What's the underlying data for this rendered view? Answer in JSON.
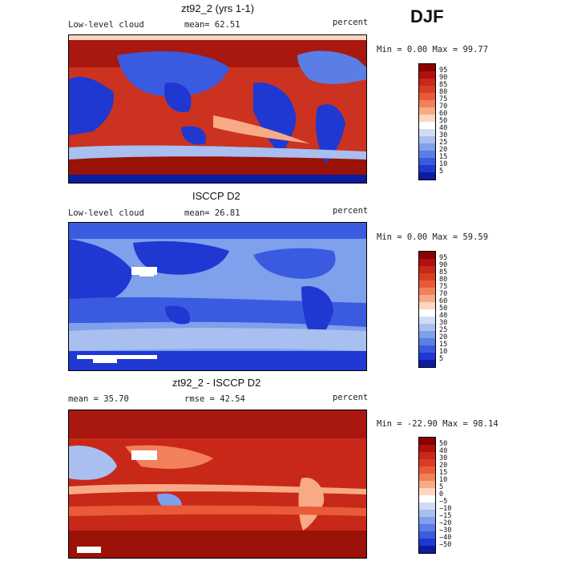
{
  "season": "DJF",
  "panels": [
    {
      "title": "zt92_2 (yrs 1-1)",
      "left_label": "Low-level cloud",
      "mid_label": "mean=  62.51",
      "right_label": "percent",
      "minmax": "Min =    0.00 Max =  99.77",
      "colorbar_ticks": [
        "95",
        "90",
        "85",
        "80",
        "75",
        "70",
        "60",
        "50",
        "40",
        "30",
        "25",
        "20",
        "15",
        "10",
        "5"
      ],
      "colors": [
        "#8b0000",
        "#b01010",
        "#c82818",
        "#dc3c24",
        "#e85a38",
        "#f2805a",
        "#f8aa86",
        "#fbd6c0",
        "#ffffff",
        "#d0dcf4",
        "#a8bff0",
        "#7fa0ea",
        "#5a7ee6",
        "#3a5be0",
        "#1f38d2",
        "#0c1ca0"
      ]
    },
    {
      "title": "ISCCP D2",
      "left_label": "Low-level cloud",
      "mid_label": "mean=  26.81",
      "right_label": "percent",
      "minmax": "Min =    0.00 Max =  59.59",
      "colorbar_ticks": [
        "95",
        "90",
        "85",
        "80",
        "75",
        "70",
        "60",
        "50",
        "40",
        "30",
        "25",
        "20",
        "15",
        "10",
        "5"
      ],
      "colors": [
        "#8b0000",
        "#b01010",
        "#c82818",
        "#dc3c24",
        "#e85a38",
        "#f2805a",
        "#f8aa86",
        "#fbd6c0",
        "#ffffff",
        "#d0dcf4",
        "#a8bff0",
        "#7fa0ea",
        "#5a7ee6",
        "#3a5be0",
        "#1f38d2",
        "#0c1ca0"
      ]
    },
    {
      "title": "zt92_2 - ISCCP D2",
      "left_label": "mean =  35.70",
      "mid_label": "rmse =  42.54",
      "right_label": "percent",
      "minmax": "Min = -22.90 Max =  98.14",
      "colorbar_ticks": [
        "50",
        "40",
        "30",
        "20",
        "15",
        "10",
        "5",
        "0",
        "−5",
        "−10",
        "−15",
        "−20",
        "−30",
        "−40",
        "−50"
      ],
      "colors": [
        "#8b0000",
        "#b01010",
        "#c82818",
        "#dc3c24",
        "#e85a38",
        "#f2805a",
        "#f8aa86",
        "#fbd6c0",
        "#ffffff",
        "#d0dcf4",
        "#a8bff0",
        "#7fa0ea",
        "#5a7ee6",
        "#3a5be0",
        "#1f38d2",
        "#0c1ca0"
      ]
    }
  ],
  "chart_data": [
    {
      "type": "heatmap",
      "title": "zt92_2 (yrs 1-1)",
      "variable": "Low-level cloud",
      "units": "percent",
      "mean": 62.51,
      "min": 0.0,
      "max": 99.77,
      "levels": [
        5,
        10,
        15,
        20,
        25,
        30,
        40,
        50,
        60,
        70,
        75,
        80,
        85,
        90,
        95
      ]
    },
    {
      "type": "heatmap",
      "title": "ISCCP D2",
      "variable": "Low-level cloud",
      "units": "percent",
      "mean": 26.81,
      "min": 0.0,
      "max": 59.59,
      "levels": [
        5,
        10,
        15,
        20,
        25,
        30,
        40,
        50,
        60,
        70,
        75,
        80,
        85,
        90,
        95
      ]
    },
    {
      "type": "heatmap",
      "title": "zt92_2 - ISCCP D2",
      "units": "percent",
      "mean": 35.7,
      "rmse": 42.54,
      "min": -22.9,
      "max": 98.14,
      "levels": [
        -50,
        -40,
        -30,
        -20,
        -15,
        -10,
        -5,
        0,
        5,
        10,
        15,
        20,
        30,
        40,
        50
      ]
    }
  ]
}
